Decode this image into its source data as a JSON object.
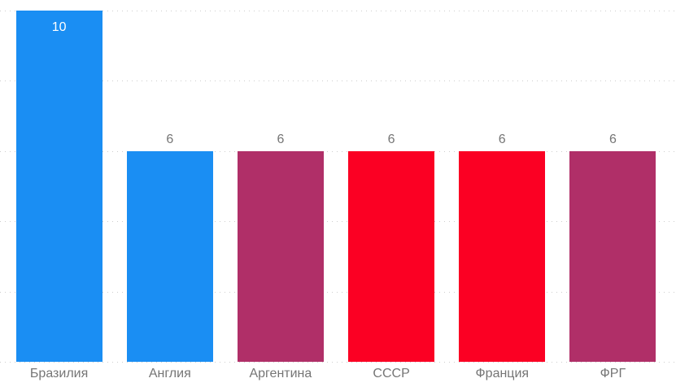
{
  "chart_data": {
    "type": "bar",
    "categories": [
      "Бразилия",
      "Англия",
      "Аргентина",
      "СССР",
      "Франция",
      "ФРГ"
    ],
    "values": [
      10,
      6,
      6,
      6,
      6,
      6
    ],
    "bar_colors": [
      "#1A8EF3",
      "#1A8EF3",
      "#B02F68",
      "#FB0023",
      "#FB0023",
      "#B02F68"
    ],
    "data_labels": [
      "10",
      "6",
      "6",
      "6",
      "6",
      "6"
    ],
    "title": "",
    "xlabel": "",
    "ylabel": "",
    "ylim": [
      0,
      10
    ],
    "gridline_values": [
      0,
      2,
      4,
      6,
      8,
      10
    ],
    "grid": "dotted horizontal",
    "legend_position": "none",
    "axis_ticks_visible": false
  },
  "styles": {
    "background_color": "#FFFFFF",
    "gridline_color": "#CDCDCD",
    "label_color": "#757575",
    "inside_label_color": "#FFFFFF"
  }
}
